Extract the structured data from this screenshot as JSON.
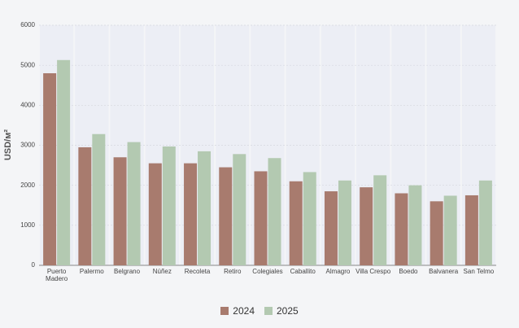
{
  "chart_data": {
    "type": "bar",
    "y_label": "USD/м²",
    "categories": [
      "Puerto Madero",
      "Palermo",
      "Belgrano",
      "Núñez",
      "Recoleta",
      "Retiro",
      "Colegiales",
      "Caballito",
      "Almagro",
      "Villa Crespo",
      "Boedo",
      "Balvanera",
      "San Telmo"
    ],
    "series": [
      {
        "name": "2024",
        "color": "#a87b6e",
        "values": [
          4800,
          2950,
          2700,
          2550,
          2550,
          2450,
          2350,
          2100,
          1850,
          1950,
          1800,
          1600,
          1750
        ]
      },
      {
        "name": "2025",
        "color": "#b3c9b1",
        "values": [
          5130,
          3280,
          3080,
          2970,
          2850,
          2780,
          2680,
          2330,
          2120,
          2250,
          2000,
          1740,
          2120
        ]
      }
    ],
    "ylim": [
      0,
      6000
    ],
    "yticks": [
      0,
      1000,
      2000,
      3000,
      4000,
      5000,
      6000
    ],
    "grid": true,
    "legend": "bottom"
  }
}
